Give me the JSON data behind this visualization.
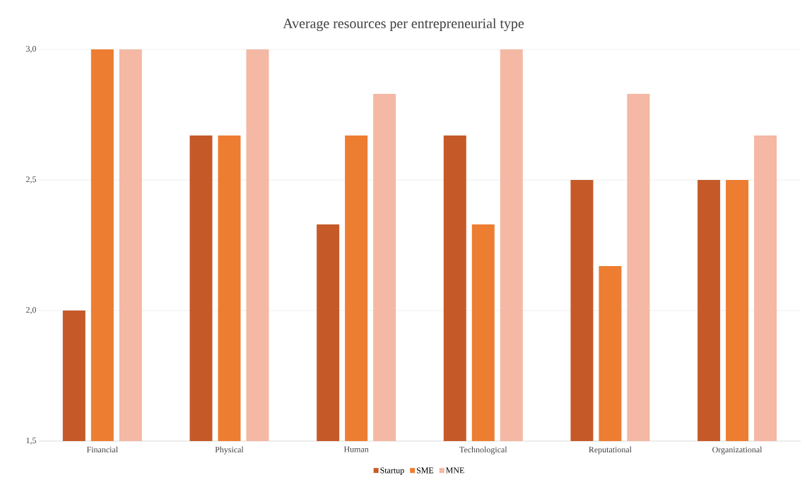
{
  "chart_data": {
    "type": "bar",
    "title": "Average resources per entrepreneurial type",
    "categories": [
      "Financial",
      "Physical",
      "Human",
      "Technological",
      "Reputational",
      "Organizational"
    ],
    "series": [
      {
        "name": "Startup",
        "color": "#c55a28",
        "values": [
          2.0,
          2.67,
          2.33,
          2.67,
          2.5,
          2.5
        ]
      },
      {
        "name": "SME",
        "color": "#ed7d31",
        "values": [
          3.0,
          2.67,
          2.67,
          2.33,
          2.17,
          2.5
        ]
      },
      {
        "name": "MNE",
        "color": "#f4b8a4",
        "values": [
          3.0,
          3.0,
          2.83,
          3.0,
          2.83,
          2.67
        ]
      }
    ],
    "ylim": [
      1.5,
      3.0
    ],
    "yticks": [
      {
        "value": 1.5,
        "label": "1,5"
      },
      {
        "value": 2.0,
        "label": "2,0"
      },
      {
        "value": 2.5,
        "label": "2,5"
      },
      {
        "value": 3.0,
        "label": "3,0"
      }
    ],
    "grid": "y",
    "legend": "bottom"
  }
}
